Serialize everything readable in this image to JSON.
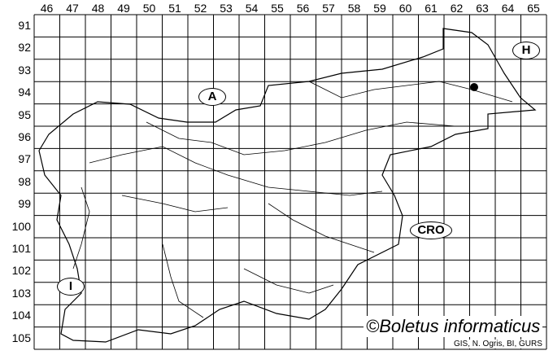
{
  "grid": {
    "columns": [
      "46",
      "47",
      "48",
      "49",
      "50",
      "51",
      "52",
      "53",
      "54",
      "55",
      "56",
      "57",
      "58",
      "59",
      "60",
      "61",
      "62",
      "63",
      "64",
      "65"
    ],
    "rows": [
      "91",
      "92",
      "93",
      "94",
      "95",
      "96",
      "97",
      "98",
      "99",
      "100",
      "101",
      "102",
      "103",
      "104",
      "105"
    ]
  },
  "country_labels": {
    "austria": "A",
    "hungary": "H",
    "italy": "I",
    "croatia": "CRO"
  },
  "occurrence": {
    "grid_column": "63",
    "grid_row": "94",
    "marker": "filled-dot"
  },
  "credit": "©Boletus informaticus",
  "source": "GIS, N. Ogris, BI, GURS",
  "colors": {
    "lines": "#000000",
    "background": "#ffffff"
  }
}
